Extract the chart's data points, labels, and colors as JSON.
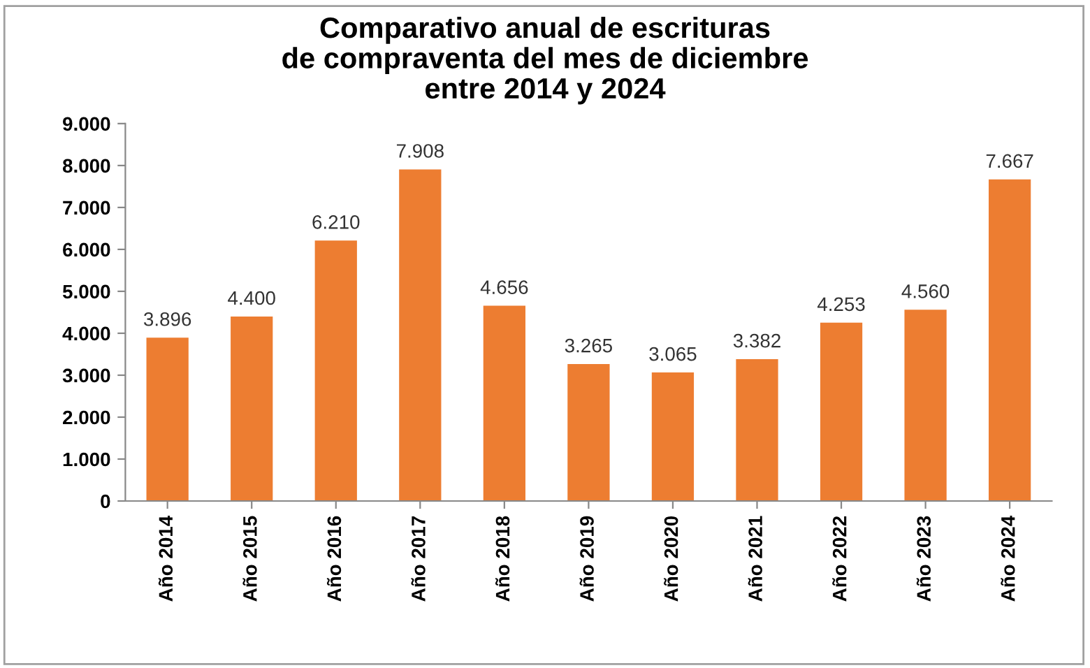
{
  "chart_data": {
    "type": "bar",
    "title": "Comparativo anual de escrituras\nde compraventa del mes de diciembre\nentre 2014 y 2024",
    "categories": [
      "Año 2014",
      "Año 2015",
      "Año 2016",
      "Año 2017",
      "Año 2018",
      "Año 2019",
      "Año 2020",
      "Año 2021",
      "Año 2022",
      "Año 2023",
      "Año 2024"
    ],
    "values": [
      3896,
      4400,
      6210,
      7908,
      4656,
      3265,
      3065,
      3382,
      4253,
      4560,
      7667
    ],
    "value_labels": [
      "3.896",
      "4.400",
      "6.210",
      "7.908",
      "4.656",
      "3.265",
      "3.065",
      "3.382",
      "4.253",
      "4.560",
      "7.667"
    ],
    "color": "#ed7d31",
    "ylim": [
      0,
      9000
    ],
    "yticks": [
      {
        "value": 0,
        "label": "0"
      },
      {
        "value": 1000,
        "label": "1.000"
      },
      {
        "value": 2000,
        "label": "2.000"
      },
      {
        "value": 3000,
        "label": "3.000"
      },
      {
        "value": 4000,
        "label": "4.000"
      },
      {
        "value": 5000,
        "label": "5.000"
      },
      {
        "value": 6000,
        "label": "6.000"
      },
      {
        "value": 7000,
        "label": "7.000"
      },
      {
        "value": 8000,
        "label": "8.000"
      },
      {
        "value": 9000,
        "label": "9.000"
      }
    ],
    "grid": false,
    "legend": false
  }
}
